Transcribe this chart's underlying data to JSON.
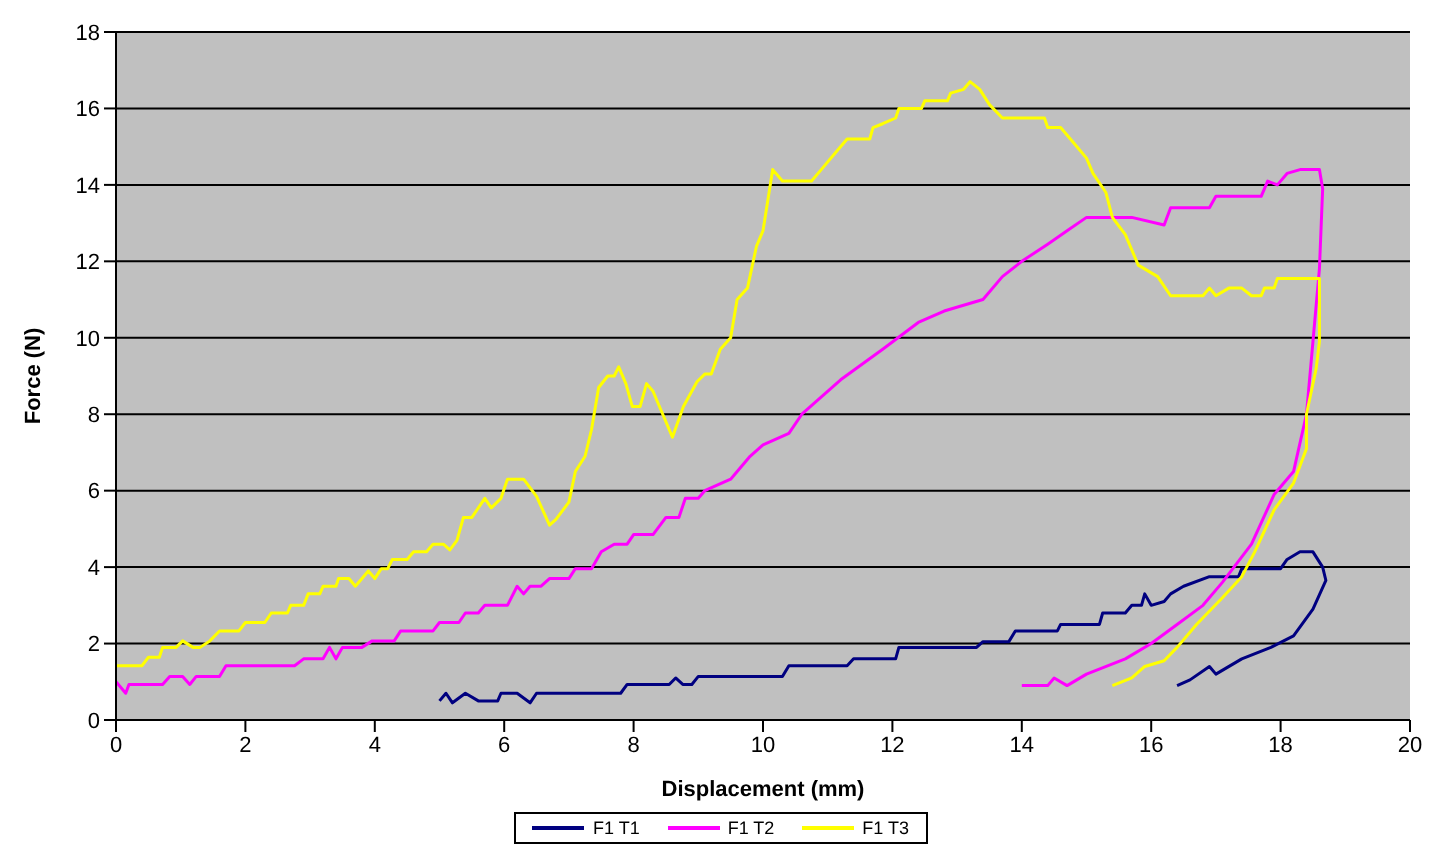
{
  "chart_data": {
    "type": "line",
    "xlabel": "Displacement (mm)",
    "ylabel": "Force (N)",
    "xlim": [
      0,
      20
    ],
    "xticks": [
      0,
      2,
      4,
      6,
      8,
      10,
      12,
      14,
      16,
      18,
      20
    ],
    "ylim": [
      0,
      18
    ],
    "yticks": [
      0,
      2,
      4,
      6,
      8,
      10,
      12,
      14,
      16,
      18
    ],
    "grid": "y",
    "legend": "bottom",
    "marker": "none",
    "line_style": "solid",
    "series": [
      {
        "name": "F1 T1",
        "color": "#000080",
        "x": [
          5.0,
          5.1,
          5.2,
          5.4,
          5.6,
          5.9,
          5.95,
          6.2,
          6.4,
          6.5,
          7.8,
          7.9,
          8.55,
          8.65,
          8.76,
          8.9,
          9.0,
          10.3,
          10.4,
          11.3,
          11.4,
          12.05,
          12.1,
          13.3,
          13.4,
          13.8,
          13.9,
          14.55,
          14.6,
          15.2,
          15.25,
          15.6,
          15.7,
          15.85,
          15.9,
          16.0,
          16.2,
          16.3,
          16.5,
          16.9,
          17.35,
          17.4,
          18.0,
          18.1,
          18.3,
          18.5,
          18.65,
          18.7,
          18.5,
          18.2,
          17.85,
          17.4,
          17.0,
          16.9,
          16.6,
          16.4
        ],
        "values": [
          0.5,
          0.7,
          0.45,
          0.7,
          0.5,
          0.5,
          0.7,
          0.7,
          0.45,
          0.7,
          0.7,
          0.93,
          0.93,
          1.1,
          0.93,
          0.93,
          1.14,
          1.14,
          1.42,
          1.42,
          1.6,
          1.6,
          1.9,
          1.9,
          2.05,
          2.05,
          2.33,
          2.33,
          2.5,
          2.5,
          2.8,
          2.8,
          3.0,
          3.0,
          3.3,
          3.0,
          3.1,
          3.3,
          3.5,
          3.75,
          3.75,
          3.96,
          3.96,
          4.2,
          4.4,
          4.4,
          4.0,
          3.65,
          2.9,
          2.2,
          1.9,
          1.6,
          1.2,
          1.4,
          1.05,
          0.9
        ]
      },
      {
        "name": "F1 T2",
        "color": "#ff00ff",
        "x": [
          0.0,
          0.15,
          0.2,
          0.72,
          0.83,
          1.03,
          1.14,
          1.24,
          1.6,
          1.7,
          2.76,
          2.9,
          3.2,
          3.3,
          3.4,
          3.5,
          3.8,
          3.96,
          4.3,
          4.4,
          4.9,
          5.0,
          5.3,
          5.4,
          5.6,
          5.7,
          6.05,
          6.2,
          6.3,
          6.4,
          6.57,
          6.7,
          7.0,
          7.1,
          7.35,
          7.5,
          7.7,
          7.9,
          8.0,
          8.3,
          8.5,
          8.7,
          8.8,
          9.0,
          9.1,
          9.5,
          9.8,
          10.0,
          10.4,
          10.6,
          11.2,
          11.85,
          12.4,
          12.8,
          13.4,
          13.7,
          14.0,
          14.4,
          14.7,
          15.0,
          15.4,
          15.7,
          16.2,
          16.3,
          16.9,
          17.0,
          17.7,
          17.8,
          17.95,
          18.1,
          18.3,
          18.6,
          18.65,
          18.6,
          18.5,
          18.4,
          18.2,
          17.9,
          17.55,
          17.1,
          16.8,
          16.4,
          16.0,
          15.6,
          15.0,
          14.7,
          14.5,
          14.4,
          14.0
        ],
        "values": [
          1.0,
          0.7,
          0.93,
          0.93,
          1.14,
          1.14,
          0.93,
          1.14,
          1.14,
          1.42,
          1.42,
          1.6,
          1.6,
          1.9,
          1.6,
          1.9,
          1.9,
          2.07,
          2.07,
          2.33,
          2.33,
          2.55,
          2.55,
          2.8,
          2.8,
          3.0,
          3.0,
          3.5,
          3.3,
          3.5,
          3.5,
          3.7,
          3.7,
          3.96,
          3.96,
          4.4,
          4.6,
          4.6,
          4.85,
          4.85,
          5.3,
          5.3,
          5.8,
          5.8,
          6.0,
          6.3,
          6.9,
          7.2,
          7.5,
          8.0,
          8.9,
          9.7,
          10.4,
          10.7,
          11.0,
          11.6,
          12.0,
          12.45,
          12.8,
          13.15,
          13.15,
          13.15,
          12.95,
          13.4,
          13.4,
          13.7,
          13.7,
          14.1,
          14.0,
          14.3,
          14.4,
          14.4,
          13.9,
          11.8,
          9.9,
          8.0,
          6.5,
          5.9,
          4.6,
          3.6,
          3.0,
          2.5,
          2.0,
          1.6,
          1.2,
          0.9,
          1.1,
          0.9,
          0.9
        ]
      },
      {
        "name": "F1 T3",
        "color": "#ffff00",
        "x": [
          0.0,
          0.4,
          0.5,
          0.67,
          0.72,
          0.93,
          1.03,
          1.19,
          1.3,
          1.45,
          1.6,
          1.9,
          2.0,
          2.3,
          2.4,
          2.65,
          2.7,
          2.9,
          2.97,
          3.15,
          3.2,
          3.4,
          3.44,
          3.6,
          3.7,
          3.9,
          4.0,
          4.1,
          4.2,
          4.27,
          4.5,
          4.6,
          4.8,
          4.9,
          5.06,
          5.16,
          5.27,
          5.37,
          5.5,
          5.7,
          5.8,
          5.95,
          6.05,
          6.3,
          6.5,
          6.7,
          6.8,
          7.0,
          7.1,
          7.25,
          7.35,
          7.46,
          7.6,
          7.7,
          7.77,
          7.88,
          7.98,
          8.1,
          8.2,
          8.3,
          8.45,
          8.6,
          8.77,
          8.98,
          9.1,
          9.2,
          9.34,
          9.5,
          9.6,
          9.76,
          9.9,
          10.0,
          10.15,
          10.3,
          10.4,
          10.75,
          10.9,
          11.1,
          11.3,
          11.65,
          11.7,
          11.85,
          12.05,
          12.1,
          12.45,
          12.5,
          12.85,
          12.9,
          13.1,
          13.2,
          13.35,
          13.5,
          13.7,
          14.35,
          14.4,
          14.6,
          14.8,
          15.0,
          15.1,
          15.3,
          15.4,
          15.6,
          15.8,
          16.1,
          16.3,
          16.8,
          16.9,
          17.0,
          17.2,
          17.4,
          17.55,
          17.7,
          17.75,
          17.9,
          17.95,
          18.6,
          18.6,
          18.55,
          18.4,
          18.4,
          18.2,
          17.9,
          17.6,
          17.4,
          17.1,
          16.7,
          16.4,
          16.2,
          15.9,
          15.7,
          15.4
        ],
        "values": [
          1.42,
          1.42,
          1.64,
          1.64,
          1.9,
          1.9,
          2.07,
          1.9,
          1.9,
          2.07,
          2.33,
          2.33,
          2.55,
          2.55,
          2.8,
          2.8,
          3.0,
          3.0,
          3.3,
          3.3,
          3.5,
          3.5,
          3.7,
          3.7,
          3.5,
          3.9,
          3.7,
          3.96,
          3.96,
          4.2,
          4.2,
          4.4,
          4.4,
          4.6,
          4.6,
          4.45,
          4.7,
          5.3,
          5.3,
          5.8,
          5.55,
          5.8,
          6.3,
          6.3,
          5.85,
          5.1,
          5.25,
          5.7,
          6.5,
          6.9,
          7.6,
          8.7,
          9.0,
          9.0,
          9.24,
          8.8,
          8.2,
          8.2,
          8.8,
          8.6,
          8.0,
          7.4,
          8.2,
          8.85,
          9.05,
          9.05,
          9.7,
          10.0,
          11.0,
          11.3,
          12.4,
          12.8,
          14.4,
          14.1,
          14.1,
          14.1,
          14.4,
          14.8,
          15.2,
          15.2,
          15.5,
          15.6,
          15.75,
          16.0,
          16.0,
          16.2,
          16.2,
          16.4,
          16.5,
          16.7,
          16.5,
          16.1,
          15.75,
          15.75,
          15.5,
          15.5,
          15.1,
          14.7,
          14.3,
          13.8,
          13.15,
          12.7,
          11.9,
          11.6,
          11.1,
          11.1,
          11.3,
          11.1,
          11.3,
          11.3,
          11.1,
          11.1,
          11.3,
          11.3,
          11.55,
          11.55,
          9.9,
          9.2,
          8.0,
          7.1,
          6.2,
          5.5,
          4.4,
          3.75,
          3.2,
          2.5,
          1.9,
          1.55,
          1.4,
          1.1,
          0.9
        ]
      }
    ]
  }
}
